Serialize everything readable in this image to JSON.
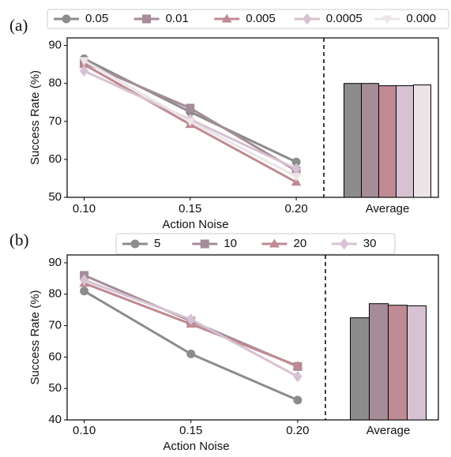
{
  "chart_data": [
    {
      "type": "line_bar",
      "panel_label": "(a)",
      "x_label": "Action Noise",
      "y_label": "Success Rate (%)",
      "bar_category": "Average",
      "x": [
        0.1,
        0.15,
        0.2
      ],
      "xlim": [
        0.092,
        0.213
      ],
      "xticks": [
        {
          "value": 0.1,
          "label": "0.10"
        },
        {
          "value": 0.15,
          "label": "0.15"
        },
        {
          "value": 0.2,
          "label": "0.20"
        }
      ],
      "ylim": [
        50,
        92
      ],
      "yticks": [
        50,
        60,
        70,
        80,
        90
      ],
      "series": [
        {
          "name": "0.05",
          "color": "#8c8c8c",
          "marker": "circle",
          "values": [
            86.5,
            72.5,
            59.3
          ],
          "average": 80.0
        },
        {
          "name": "0.01",
          "color": "#a48c98",
          "marker": "square",
          "values": [
            85.5,
            73.5,
            57.0
          ],
          "average": 80.0
        },
        {
          "name": "0.005",
          "color": "#bf8a93",
          "marker": "triangle-up",
          "values": [
            85.0,
            69.2,
            54.0
          ],
          "average": 79.4
        },
        {
          "name": "0.0005",
          "color": "#d6c2d2",
          "marker": "diamond",
          "values": [
            83.3,
            70.5,
            57.5
          ],
          "average": 79.4
        },
        {
          "name": "0.000",
          "color": "#ece4e6",
          "marker": "triangle-down",
          "values": [
            86.0,
            70.0,
            55.5
          ],
          "average": 79.6
        }
      ]
    },
    {
      "type": "line_bar",
      "panel_label": "(b)",
      "x_label": "Action Noise",
      "y_label": "Success Rate (%)",
      "bar_category": "Average",
      "x": [
        0.1,
        0.15,
        0.2
      ],
      "xlim": [
        0.092,
        0.213
      ],
      "xticks": [
        {
          "value": 0.1,
          "label": "0.10"
        },
        {
          "value": 0.15,
          "label": "0.15"
        },
        {
          "value": 0.2,
          "label": "0.20"
        }
      ],
      "ylim": [
        40,
        92.5
      ],
      "yticks": [
        40,
        50,
        60,
        70,
        80,
        90
      ],
      "series": [
        {
          "name": "5",
          "color": "#8c8c8c",
          "marker": "circle",
          "values": [
            81.0,
            61.0,
            46.3
          ],
          "average": 72.5
        },
        {
          "name": "10",
          "color": "#a48c98",
          "marker": "square",
          "values": [
            86.0,
            71.5,
            57.0
          ],
          "average": 77.0
        },
        {
          "name": "20",
          "color": "#bf8a93",
          "marker": "triangle-up",
          "values": [
            83.5,
            70.5,
            57.2
          ],
          "average": 76.5
        },
        {
          "name": "30",
          "color": "#d6c2d2",
          "marker": "diamond",
          "values": [
            84.5,
            72.0,
            53.8
          ],
          "average": 76.3
        }
      ]
    }
  ]
}
